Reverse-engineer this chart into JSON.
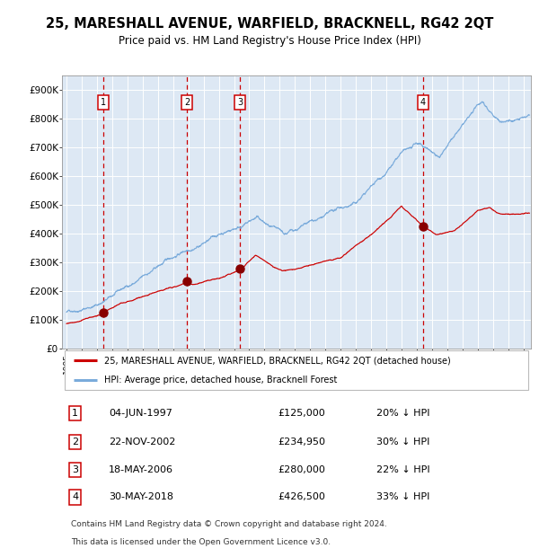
{
  "title": "25, MARESHALL AVENUE, WARFIELD, BRACKNELL, RG42 2QT",
  "subtitle": "Price paid vs. HM Land Registry's House Price Index (HPI)",
  "title_fontsize": 10.5,
  "subtitle_fontsize": 8.5,
  "background_color": "#ffffff",
  "plot_bg_color": "#dde8f4",
  "grid_color": "#ffffff",
  "red_line_color": "#cc0000",
  "blue_line_color": "#7aabdb",
  "sale_dot_color": "#880000",
  "vline_color": "#cc0000",
  "ylim": [
    0,
    950000
  ],
  "yticks": [
    0,
    100000,
    200000,
    300000,
    400000,
    500000,
    600000,
    700000,
    800000,
    900000
  ],
  "ytick_labels": [
    "£0",
    "£100K",
    "£200K",
    "£300K",
    "£400K",
    "£500K",
    "£600K",
    "£700K",
    "£800K",
    "£900K"
  ],
  "xlim_start": 1994.7,
  "xlim_end": 2025.5,
  "xtick_years": [
    1995,
    1996,
    1997,
    1998,
    1999,
    2000,
    2001,
    2002,
    2003,
    2004,
    2005,
    2006,
    2007,
    2008,
    2009,
    2010,
    2011,
    2012,
    2013,
    2014,
    2015,
    2016,
    2017,
    2018,
    2019,
    2020,
    2021,
    2022,
    2023,
    2024,
    2025
  ],
  "sales": [
    {
      "num": 1,
      "year": 1997.43,
      "price": 125000,
      "label": "04-JUN-1997",
      "pct": "20%",
      "dir": "↓"
    },
    {
      "num": 2,
      "year": 2002.9,
      "price": 234950,
      "label": "22-NOV-2002",
      "pct": "30%",
      "dir": "↓"
    },
    {
      "num": 3,
      "year": 2006.38,
      "price": 280000,
      "label": "18-MAY-2006",
      "pct": "22%",
      "dir": "↓"
    },
    {
      "num": 4,
      "year": 2018.41,
      "price": 426500,
      "label": "30-MAY-2018",
      "pct": "33%",
      "dir": "↓"
    }
  ],
  "legend_line1": "25, MARESHALL AVENUE, WARFIELD, BRACKNELL, RG42 2QT (detached house)",
  "legend_line2": "HPI: Average price, detached house, Bracknell Forest",
  "footer_line1": "Contains HM Land Registry data © Crown copyright and database right 2024.",
  "footer_line2": "This data is licensed under the Open Government Licence v3.0."
}
